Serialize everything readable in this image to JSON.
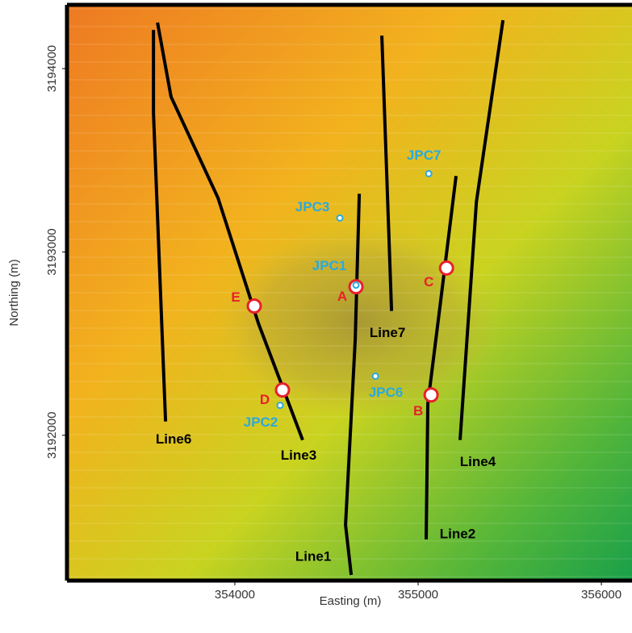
{
  "chart_data": {
    "type": "map",
    "x_label": "Easting (m)",
    "y_label": "Northing (m)",
    "xlim": [
      353093,
      356167
    ],
    "ylim": [
      3191216,
      3194339
    ],
    "xticks": [
      354000,
      355000,
      356000
    ],
    "yticks": [
      3192000,
      3193000,
      3194000
    ],
    "lines": [
      {
        "name": "Line6",
        "easting": [
          353556,
          353556,
          353622
        ],
        "northing": [
          3194211,
          3193758,
          3192075
        ]
      },
      {
        "name": "Line3",
        "easting": [
          353578,
          353652,
          353908,
          354128,
          354370
        ],
        "northing": [
          3194251,
          3193846,
          3193295,
          3192612,
          3191974
        ]
      },
      {
        "name": "Line1",
        "easting": [
          354679,
          354657,
          354604,
          354635
        ],
        "northing": [
          3193317,
          3192524,
          3191511,
          3191238
        ]
      },
      {
        "name": "Line7",
        "easting": [
          354802,
          354855
        ],
        "northing": [
          3194180,
          3192678
        ]
      },
      {
        "name": "Line2",
        "easting": [
          355207,
          355119,
          355053,
          355044
        ],
        "northing": [
          3193414,
          3192700,
          3192172,
          3191432
        ]
      },
      {
        "name": "Line4",
        "easting": [
          355463,
          355318,
          355229
        ],
        "northing": [
          3194264,
          3193273,
          3191974
        ]
      }
    ],
    "line_color": "#000000",
    "sites": [
      {
        "name": "A",
        "easting": 354661,
        "northing": 3192810
      },
      {
        "name": "B",
        "easting": 355071,
        "northing": 3192220
      },
      {
        "name": "C",
        "easting": 355155,
        "northing": 3192912
      },
      {
        "name": "D",
        "easting": 354260,
        "northing": 3192247
      },
      {
        "name": "E",
        "easting": 354106,
        "northing": 3192705
      }
    ],
    "site_color": "#e8202a",
    "cores": [
      {
        "name": "JPC7",
        "easting": 355058,
        "northing": 3193427
      },
      {
        "name": "JPC3",
        "easting": 354573,
        "northing": 3193185
      },
      {
        "name": "JPC1",
        "easting": 354661,
        "northing": 3192819
      },
      {
        "name": "JPC6",
        "easting": 354767,
        "northing": 3192322
      },
      {
        "name": "JPC2",
        "easting": 354247,
        "northing": 3192163
      }
    ],
    "core_color": "#29a9e0"
  }
}
